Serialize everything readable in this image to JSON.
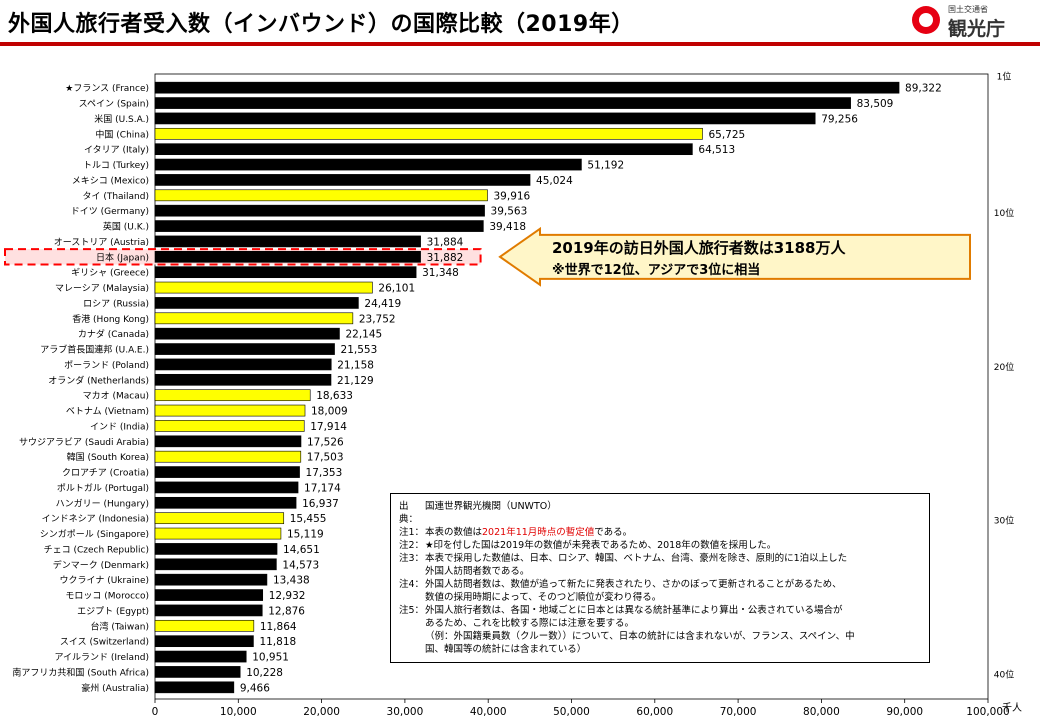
{
  "header": {
    "title": "外国人旅行者受入数（インバウンド）の国際比較（2019年）",
    "logo_ministry": "国土交通省",
    "logo_agency": "観光庁"
  },
  "callout": {
    "line1": "2019年の訪日外国人旅行者数は3188万人",
    "line2": "※世界で12位、アジアで3位に相当"
  },
  "notes": {
    "source_label": "出典：",
    "source_text": "国連世界観光機関（UNWTO）",
    "n1_label": "注1：",
    "n1_pre": "本表の数値は",
    "n1_red": "2021年11月時点の暫定値",
    "n1_post": "である。",
    "n2_label": "注2：",
    "n2_text": "★印を付した国は2019年の数値が未発表であるため、2018年の数値を採用した。",
    "n3_label": "注3：",
    "n3_text1": "本表で採用した数値は、日本、ロシア、韓国、ベトナム、台湾、豪州を除き、原則的に1泊以上した",
    "n3_text2": "外国人訪問者数である。",
    "n4_label": "注4：",
    "n4_text1": "外国人訪問者数は、数値が追って新たに発表されたり、さかのぼって更新されることがあるため、",
    "n4_text2": "数値の採用時期によって、そのつど順位が変わり得る。",
    "n5_label": "注5：",
    "n5_text1": "外国人旅行者数は、各国・地域ごとに日本とは異なる統計基準により算出・公表されている場合が",
    "n5_text2": "あるため、これを比較する際には注意を要する。",
    "n5_text3": "（例：外国籍乗員数（クルー数））について、日本の統計には含まれないが、フランス、スペイン、中",
    "n5_text4": "国、韓国等の統計には含まれている）"
  },
  "colors": {
    "bar_default": "#000000",
    "bar_asia": "#ffff00",
    "japan_highlight": "#ffe0e0",
    "japan_dash": "#ff0000",
    "title_rule": "#c00000",
    "callout_fill": "#fff6c8",
    "callout_border": "#e07b00"
  },
  "chart_data": {
    "type": "bar",
    "orientation": "horizontal",
    "unit_label": "千人",
    "xlim": [
      0,
      100000
    ],
    "xticks": [
      0,
      10000,
      20000,
      30000,
      40000,
      50000,
      60000,
      70000,
      80000,
      90000,
      100000
    ],
    "xtick_labels": [
      "0",
      "10,000",
      "20,000",
      "30,000",
      "40,000",
      "50,000",
      "60,000",
      "70,000",
      "80,000",
      "90,000",
      "100,000"
    ],
    "rank_labels": [
      {
        "rank": 1,
        "label": "1位"
      },
      {
        "rank": 10,
        "label": "10位"
      },
      {
        "rank": 20,
        "label": "20位"
      },
      {
        "rank": 30,
        "label": "30位"
      },
      {
        "rank": 40,
        "label": "40位"
      }
    ],
    "categories": [
      {
        "name": "★フランス (France)",
        "value": 89322,
        "label": "89,322",
        "asia": false
      },
      {
        "name": "スペイン (Spain)",
        "value": 83509,
        "label": "83,509",
        "asia": false
      },
      {
        "name": "米国 (U.S.A.)",
        "value": 79256,
        "label": "79,256",
        "asia": false
      },
      {
        "name": "中国 (China)",
        "value": 65725,
        "label": "65,725",
        "asia": true
      },
      {
        "name": "イタリア (Italy)",
        "value": 64513,
        "label": "64,513",
        "asia": false
      },
      {
        "name": "トルコ (Turkey)",
        "value": 51192,
        "label": "51,192",
        "asia": false
      },
      {
        "name": "メキシコ (Mexico)",
        "value": 45024,
        "label": "45,024",
        "asia": false
      },
      {
        "name": "タイ (Thailand)",
        "value": 39916,
        "label": "39,916",
        "asia": true
      },
      {
        "name": "ドイツ (Germany)",
        "value": 39563,
        "label": "39,563",
        "asia": false
      },
      {
        "name": "英国 (U.K.)",
        "value": 39418,
        "label": "39,418",
        "asia": false
      },
      {
        "name": "オーストリア (Austria)",
        "value": 31884,
        "label": "31,884",
        "asia": false
      },
      {
        "name": "日本 (Japan)",
        "value": 31882,
        "label": "31,882",
        "asia": false,
        "japan": true
      },
      {
        "name": "ギリシャ (Greece)",
        "value": 31348,
        "label": "31,348",
        "asia": false
      },
      {
        "name": "マレーシア (Malaysia)",
        "value": 26101,
        "label": "26,101",
        "asia": true
      },
      {
        "name": "ロシア (Russia)",
        "value": 24419,
        "label": "24,419",
        "asia": false
      },
      {
        "name": "香港 (Hong Kong)",
        "value": 23752,
        "label": "23,752",
        "asia": true
      },
      {
        "name": "カナダ (Canada)",
        "value": 22145,
        "label": "22,145",
        "asia": false
      },
      {
        "name": "アラブ首長国連邦 (U.A.E.)",
        "value": 21553,
        "label": "21,553",
        "asia": false
      },
      {
        "name": "ポーランド (Poland)",
        "value": 21158,
        "label": "21,158",
        "asia": false
      },
      {
        "name": "オランダ (Netherlands)",
        "value": 21129,
        "label": "21,129",
        "asia": false
      },
      {
        "name": "マカオ (Macau)",
        "value": 18633,
        "label": "18,633",
        "asia": true
      },
      {
        "name": "ベトナム (Vietnam)",
        "value": 18009,
        "label": "18,009",
        "asia": true
      },
      {
        "name": "インド (India)",
        "value": 17914,
        "label": "17,914",
        "asia": true
      },
      {
        "name": "サウジアラビア (Saudi Arabia)",
        "value": 17526,
        "label": "17,526",
        "asia": false
      },
      {
        "name": "韓国 (South Korea)",
        "value": 17503,
        "label": "17,503",
        "asia": true
      },
      {
        "name": "クロアチア (Croatia)",
        "value": 17353,
        "label": "17,353",
        "asia": false
      },
      {
        "name": "ポルトガル (Portugal)",
        "value": 17174,
        "label": "17,174",
        "asia": false
      },
      {
        "name": "ハンガリー (Hungary)",
        "value": 16937,
        "label": "16,937",
        "asia": false
      },
      {
        "name": "インドネシア (Indonesia)",
        "value": 15455,
        "label": "15,455",
        "asia": true
      },
      {
        "name": "シンガポール (Singapore)",
        "value": 15119,
        "label": "15,119",
        "asia": true
      },
      {
        "name": "チェコ (Czech Republic)",
        "value": 14651,
        "label": "14,651",
        "asia": false
      },
      {
        "name": "デンマーク (Denmark)",
        "value": 14573,
        "label": "14,573",
        "asia": false
      },
      {
        "name": "ウクライナ (Ukraine)",
        "value": 13438,
        "label": "13,438",
        "asia": false
      },
      {
        "name": "モロッコ (Morocco)",
        "value": 12932,
        "label": "12,932",
        "asia": false
      },
      {
        "name": "エジプト (Egypt)",
        "value": 12876,
        "label": "12,876",
        "asia": false
      },
      {
        "name": "台湾 (Taiwan)",
        "value": 11864,
        "label": "11,864",
        "asia": true
      },
      {
        "name": "スイス (Switzerland)",
        "value": 11818,
        "label": "11,818",
        "asia": false
      },
      {
        "name": "アイルランド (Ireland)",
        "value": 10951,
        "label": "10,951",
        "asia": false
      },
      {
        "name": "南アフリカ共和国 (South Africa)",
        "value": 10228,
        "label": "10,228",
        "asia": false
      },
      {
        "name": "豪州 (Australia)",
        "value": 9466,
        "label": "9,466",
        "asia": false
      }
    ]
  }
}
